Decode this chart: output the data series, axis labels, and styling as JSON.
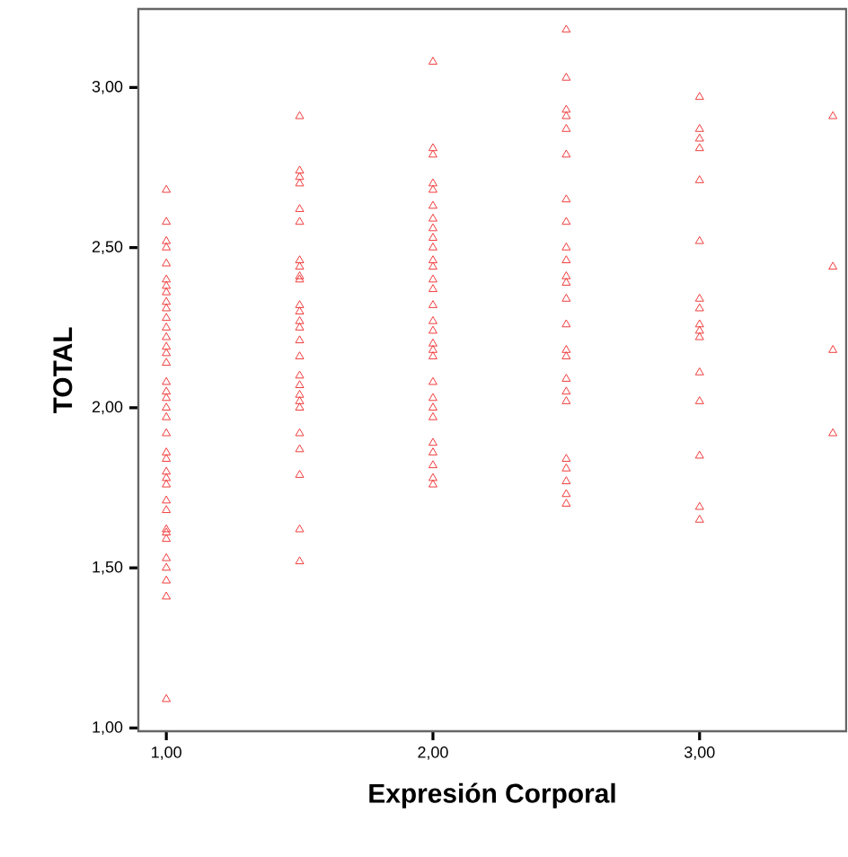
{
  "chart_data": {
    "type": "scatter",
    "xlabel": "Expresión Corporal",
    "ylabel": "TOTAL",
    "x": [
      1,
      1,
      1,
      1,
      1,
      1,
      1,
      1,
      1,
      1,
      1,
      1,
      1,
      1,
      1,
      1,
      1,
      1,
      1,
      1,
      1,
      1,
      1,
      1,
      1,
      1,
      1,
      1,
      1,
      1,
      1,
      1,
      1,
      1,
      1,
      1,
      1,
      1.5,
      1.5,
      1.5,
      1.5,
      1.5,
      1.5,
      1.5,
      1.5,
      1.5,
      1.5,
      1.5,
      1.5,
      1.5,
      1.5,
      1.5,
      1.5,
      1.5,
      1.5,
      1.5,
      1.5,
      1.5,
      1.5,
      1.5,
      1.5,
      1.5,
      1.5,
      2,
      2,
      2,
      2,
      2,
      2,
      2,
      2,
      2,
      2,
      2,
      2,
      2,
      2,
      2,
      2,
      2,
      2,
      2,
      2,
      2,
      2,
      2,
      2,
      2,
      2,
      2,
      2,
      2,
      2.5,
      2.5,
      2.5,
      2.5,
      2.5,
      2.5,
      2.5,
      2.5,
      2.5,
      2.5,
      2.5,
      2.5,
      2.5,
      2.5,
      2.5,
      2.5,
      2.5,
      2.5,
      2.5,
      2.5,
      2.5,
      2.5,
      2.5,
      2.5,
      3,
      3,
      3,
      3,
      3,
      3,
      3,
      3,
      3,
      3,
      3,
      3,
      3,
      3,
      3,
      3,
      3.5,
      3.5,
      3.5,
      3.5
    ],
    "values": [
      2.68,
      2.58,
      2.52,
      2.5,
      2.45,
      2.4,
      2.38,
      2.36,
      2.33,
      2.31,
      2.28,
      2.25,
      2.22,
      2.19,
      2.17,
      2.14,
      2.08,
      2.05,
      2.03,
      2.0,
      1.97,
      1.92,
      1.86,
      1.84,
      1.8,
      1.78,
      1.76,
      1.71,
      1.68,
      1.62,
      1.61,
      1.59,
      1.53,
      1.5,
      1.46,
      1.41,
      1.09,
      2.91,
      2.74,
      2.72,
      2.7,
      2.62,
      2.58,
      2.46,
      2.44,
      2.41,
      2.4,
      2.32,
      2.3,
      2.27,
      2.25,
      2.21,
      2.16,
      2.1,
      2.07,
      2.04,
      2.02,
      2.0,
      1.92,
      1.87,
      1.79,
      1.62,
      1.52,
      3.08,
      2.81,
      2.79,
      2.7,
      2.68,
      2.63,
      2.59,
      2.56,
      2.53,
      2.5,
      2.46,
      2.44,
      2.4,
      2.37,
      2.32,
      2.27,
      2.24,
      2.2,
      2.18,
      2.16,
      2.08,
      2.03,
      2.0,
      1.97,
      1.89,
      1.86,
      1.82,
      1.78,
      1.76,
      3.18,
      3.03,
      2.93,
      2.91,
      2.87,
      2.79,
      2.65,
      2.58,
      2.5,
      2.46,
      2.41,
      2.39,
      2.34,
      2.26,
      2.18,
      2.16,
      2.09,
      2.05,
      2.02,
      1.84,
      1.81,
      1.77,
      1.73,
      1.7,
      2.97,
      2.87,
      2.84,
      2.81,
      2.71,
      2.52,
      2.34,
      2.31,
      2.26,
      2.24,
      2.22,
      2.11,
      2.02,
      1.85,
      1.69,
      1.65,
      2.91,
      2.44,
      2.18,
      1.92
    ],
    "color": "#f03c3c",
    "marker": "triangle",
    "grid": false,
    "xlim": [
      0.895,
      3.55
    ],
    "ylim": [
      0.99,
      3.245
    ],
    "xticks": [
      {
        "value": 1,
        "label": "1,00"
      },
      {
        "value": 2,
        "label": "2,00"
      },
      {
        "value": 3,
        "label": "3,00"
      }
    ],
    "yticks": [
      {
        "value": 1,
        "label": "1,00"
      },
      {
        "value": 1.5,
        "label": "1,50"
      },
      {
        "value": 2,
        "label": "2,00"
      },
      {
        "value": 2.5,
        "label": "2,50"
      },
      {
        "value": 3,
        "label": "3,00"
      }
    ]
  }
}
